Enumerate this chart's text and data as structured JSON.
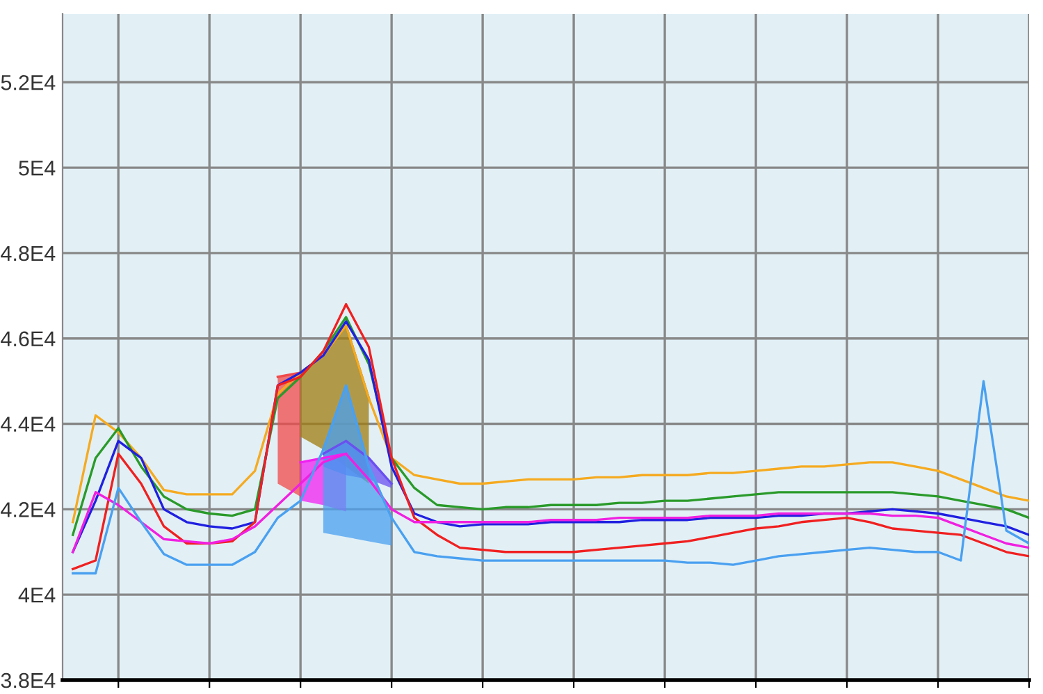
{
  "chart_data": {
    "type": "line",
    "ylim": [
      38000,
      53600
    ],
    "categories": [
      null,
      null,
      null,
      null,
      null,
      null,
      null,
      null,
      null,
      null,
      null,
      null,
      null,
      null,
      null,
      null,
      null,
      null,
      null,
      null,
      null,
      null,
      null,
      null,
      null,
      null,
      null,
      null,
      null,
      null,
      null,
      null,
      null,
      null,
      null,
      null,
      null,
      null,
      null,
      null,
      null,
      null,
      null
    ],
    "yticks": [
      {
        "value": 38000,
        "label": "3.8E4"
      },
      {
        "value": 40000,
        "label": "4E4"
      },
      {
        "value": 42000,
        "label": "4.2E4"
      },
      {
        "value": 44000,
        "label": "4.4E4"
      },
      {
        "value": 46000,
        "label": "4.6E4"
      },
      {
        "value": 48000,
        "label": "4.8E4"
      },
      {
        "value": 50000,
        "label": "5E4"
      },
      {
        "value": 52000,
        "label": "5.2E4"
      }
    ],
    "tick_labels": "y",
    "grid": true,
    "marker": "none",
    "line_style": "solid",
    "series": [
      {
        "type": "line",
        "color": "#f04a4a",
        "upper": [
          null,
          null,
          null,
          null,
          null,
          null,
          null,
          null,
          null,
          45100,
          45200,
          null,
          null,
          null,
          null,
          null,
          null,
          null,
          null,
          null,
          null,
          null,
          null,
          null,
          null,
          null,
          null,
          null,
          null,
          null,
          null,
          null,
          null,
          null,
          null,
          null,
          null,
          null,
          null,
          null,
          null,
          null,
          null
        ],
        "lower": [
          null,
          null,
          null,
          null,
          null,
          null,
          null,
          null,
          null,
          42600,
          42300,
          null,
          null,
          null,
          null,
          null,
          null,
          null,
          null,
          null,
          null,
          null,
          null,
          null,
          null,
          null,
          null,
          null,
          null,
          null,
          null,
          null,
          null,
          null,
          null,
          null,
          null,
          null,
          null,
          null,
          null,
          null,
          null
        ],
        "values": [
          null,
          null,
          null,
          null,
          null,
          null,
          null,
          null,
          null,
          45100,
          45200,
          null,
          null,
          null,
          null,
          null,
          null,
          null,
          null,
          null,
          null,
          null,
          null,
          null,
          null,
          null,
          null,
          null,
          null,
          null,
          null,
          null,
          null,
          null,
          null,
          null,
          null,
          null,
          null,
          null,
          null,
          null,
          null
        ]
      },
      {
        "type": "line",
        "color": "#a07c10",
        "upper": [
          null,
          null,
          null,
          null,
          null,
          null,
          null,
          null,
          null,
          null,
          45200,
          45600,
          46300,
          44600,
          null,
          null,
          null,
          null,
          null,
          null,
          null,
          null,
          null,
          null,
          null,
          null,
          null,
          null,
          null,
          null,
          null,
          null,
          null,
          null,
          null,
          null,
          null,
          null,
          null,
          null,
          null,
          null,
          null
        ],
        "lower": [
          null,
          null,
          null,
          null,
          null,
          null,
          null,
          null,
          null,
          null,
          43700,
          43400,
          43000,
          42600,
          null,
          null,
          null,
          null,
          null,
          null,
          null,
          null,
          null,
          null,
          null,
          null,
          null,
          null,
          null,
          null,
          null,
          null,
          null,
          null,
          null,
          null,
          null,
          null,
          null,
          null,
          null,
          null,
          null
        ],
        "values": [
          null,
          null,
          null,
          null,
          null,
          null,
          null,
          null,
          null,
          null,
          45200,
          45600,
          46300,
          44600,
          null,
          null,
          null,
          null,
          null,
          null,
          null,
          null,
          null,
          null,
          null,
          null,
          null,
          null,
          null,
          null,
          null,
          null,
          null,
          null,
          null,
          null,
          null,
          null,
          null,
          null,
          null,
          null,
          null
        ]
      },
      {
        "type": "line",
        "color": "#f020f0",
        "upper": [
          null,
          null,
          null,
          null,
          null,
          null,
          null,
          null,
          null,
          null,
          43100,
          43200,
          43300,
          null,
          null,
          null,
          null,
          null,
          null,
          null,
          null,
          null,
          null,
          null,
          null,
          null,
          null,
          null,
          null,
          null,
          null,
          null,
          null,
          null,
          null,
          null,
          null,
          null,
          null,
          null,
          null,
          null,
          null
        ],
        "lower": [
          null,
          null,
          null,
          null,
          null,
          null,
          null,
          null,
          null,
          null,
          42200,
          42100,
          41950,
          null,
          null,
          null,
          null,
          null,
          null,
          null,
          null,
          null,
          null,
          null,
          null,
          null,
          null,
          null,
          null,
          null,
          null,
          null,
          null,
          null,
          null,
          null,
          null,
          null,
          null,
          null,
          null,
          null,
          null
        ],
        "values": [
          null,
          null,
          null,
          null,
          null,
          null,
          null,
          null,
          null,
          null,
          43100,
          43200,
          43300,
          null,
          null,
          null,
          null,
          null,
          null,
          null,
          null,
          null,
          null,
          null,
          null,
          null,
          null,
          null,
          null,
          null,
          null,
          null,
          null,
          null,
          null,
          null,
          null,
          null,
          null,
          null,
          null,
          null,
          null
        ]
      },
      {
        "type": "line",
        "color": "#6a50f0",
        "upper": [
          null,
          null,
          null,
          null,
          null,
          null,
          null,
          null,
          null,
          null,
          null,
          43300,
          43600,
          43200,
          42600,
          null,
          null,
          null,
          null,
          null,
          null,
          null,
          null,
          null,
          null,
          null,
          null,
          null,
          null,
          null,
          null,
          null,
          null,
          null,
          null,
          null,
          null,
          null,
          null,
          null,
          null,
          null,
          null
        ],
        "lower": [
          null,
          null,
          null,
          null,
          null,
          null,
          null,
          null,
          null,
          null,
          null,
          43000,
          42800,
          42700,
          42500,
          null,
          null,
          null,
          null,
          null,
          null,
          null,
          null,
          null,
          null,
          null,
          null,
          null,
          null,
          null,
          null,
          null,
          null,
          null,
          null,
          null,
          null,
          null,
          null,
          null,
          null,
          null,
          null
        ],
        "values": [
          null,
          null,
          null,
          null,
          null,
          null,
          null,
          null,
          null,
          null,
          null,
          43300,
          43600,
          43200,
          42600,
          null,
          null,
          null,
          null,
          null,
          null,
          null,
          null,
          null,
          null,
          null,
          null,
          null,
          null,
          null,
          null,
          null,
          null,
          null,
          null,
          null,
          null,
          null,
          null,
          null,
          null,
          null,
          null
        ]
      },
      {
        "type": "line",
        "color": "#4aa0f0",
        "upper": [
          null,
          null,
          null,
          null,
          null,
          null,
          null,
          null,
          null,
          null,
          null,
          43400,
          44900,
          43000,
          41800,
          null,
          null,
          null,
          null,
          null,
          null,
          null,
          null,
          null,
          null,
          null,
          null,
          null,
          null,
          null,
          null,
          null,
          null,
          null,
          null,
          null,
          null,
          null,
          null,
          null,
          null,
          null,
          null
        ],
        "lower": [
          null,
          null,
          null,
          null,
          null,
          null,
          null,
          null,
          null,
          null,
          null,
          41450,
          41350,
          41250,
          41150,
          null,
          null,
          null,
          null,
          null,
          null,
          null,
          null,
          null,
          null,
          null,
          null,
          null,
          null,
          null,
          null,
          null,
          null,
          null,
          null,
          null,
          null,
          null,
          null,
          null,
          null,
          null,
          null
        ],
        "values": [
          null,
          null,
          null,
          null,
          null,
          null,
          null,
          null,
          null,
          null,
          null,
          43400,
          44900,
          43000,
          41800,
          null,
          null,
          null,
          null,
          null,
          null,
          null,
          null,
          null,
          null,
          null,
          null,
          null,
          null,
          null,
          null,
          null,
          null,
          null,
          null,
          null,
          null,
          null,
          null,
          null,
          null,
          null,
          null
        ]
      },
      {
        "color": "#f5aa20",
        "values": [
          41700,
          44200,
          43800,
          43200,
          42450,
          42350,
          42350,
          42350,
          42900,
          44700,
          45200,
          45600,
          46300,
          44600,
          43200,
          42800,
          42700,
          42600,
          42600,
          42650,
          42700,
          42700,
          42700,
          42750,
          42750,
          42800,
          42800,
          42800,
          42850,
          42850,
          42900,
          42950,
          43000,
          43000,
          43050,
          43100,
          43100,
          43000,
          42900,
          42700,
          42500,
          42300,
          42200
        ]
      },
      {
        "color": "#2a9a2a",
        "values": [
          41400,
          43200,
          43900,
          43000,
          42300,
          42000,
          41900,
          41850,
          42000,
          44600,
          45100,
          45700,
          46500,
          45400,
          43200,
          42500,
          42100,
          42050,
          42000,
          42050,
          42050,
          42100,
          42100,
          42100,
          42150,
          42150,
          42200,
          42200,
          42250,
          42300,
          42350,
          42400,
          42400,
          42400,
          42400,
          42400,
          42400,
          42350,
          42300,
          42200,
          42100,
          42000,
          41800
        ]
      },
      {
        "color": "#2020e0",
        "values": [
          41000,
          42200,
          43600,
          43200,
          42000,
          41700,
          41600,
          41550,
          41700,
          44900,
          45200,
          45600,
          46400,
          45500,
          43000,
          41900,
          41700,
          41600,
          41650,
          41650,
          41650,
          41700,
          41700,
          41700,
          41700,
          41750,
          41750,
          41750,
          41800,
          41800,
          41800,
          41850,
          41850,
          41900,
          41900,
          41950,
          42000,
          41950,
          41900,
          41800,
          41700,
          41600,
          41400
        ]
      },
      {
        "color": "#f02020",
        "values": [
          40600,
          40800,
          43300,
          42600,
          41600,
          41200,
          41200,
          41250,
          41700,
          44900,
          45100,
          45700,
          46800,
          45800,
          43200,
          41800,
          41400,
          41100,
          41050,
          41000,
          41000,
          41000,
          41000,
          41050,
          41100,
          41150,
          41200,
          41250,
          41350,
          41450,
          41550,
          41600,
          41700,
          41750,
          41800,
          41700,
          41550,
          41500,
          41450,
          41400,
          41200,
          41000,
          40900
        ]
      },
      {
        "color": "#f020e0",
        "values": [
          41000,
          42400,
          42100,
          41700,
          41300,
          41250,
          41200,
          41300,
          41600,
          42100,
          42600,
          43100,
          43300,
          42700,
          42000,
          41700,
          41700,
          41700,
          41700,
          41700,
          41700,
          41750,
          41750,
          41750,
          41800,
          41800,
          41800,
          41800,
          41850,
          41850,
          41850,
          41900,
          41900,
          41900,
          41900,
          41900,
          41850,
          41850,
          41800,
          41600,
          41400,
          41200,
          41100
        ]
      },
      {
        "color": "#4aa0f0",
        "values": [
          40500,
          40500,
          42500,
          41700,
          40950,
          40700,
          40700,
          40700,
          41000,
          41800,
          42200,
          43400,
          44900,
          43000,
          41800,
          41000,
          40900,
          40850,
          40800,
          40800,
          40800,
          40800,
          40800,
          40800,
          40800,
          40800,
          40800,
          40750,
          40750,
          40700,
          40800,
          40900,
          40950,
          41000,
          41050,
          41100,
          41050,
          41000,
          41000,
          40800,
          45000,
          41500,
          41200
        ]
      }
    ]
  }
}
